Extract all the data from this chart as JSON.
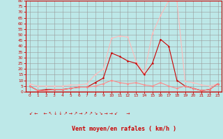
{
  "x": [
    0,
    1,
    2,
    3,
    4,
    5,
    6,
    7,
    8,
    9,
    10,
    11,
    12,
    13,
    14,
    15,
    16,
    17,
    18,
    19,
    20,
    21,
    22,
    23
  ],
  "wind_avg": [
    5,
    1,
    1,
    2,
    2,
    3,
    4,
    4,
    5,
    7,
    10,
    8,
    7,
    8,
    6,
    5,
    8,
    5,
    3,
    5,
    3,
    1,
    2,
    7
  ],
  "wind_gust": [
    7,
    5,
    5,
    5,
    5,
    6,
    6,
    7,
    15,
    20,
    47,
    49,
    48,
    27,
    16,
    51,
    67,
    80,
    80,
    9,
    8,
    6,
    5,
    7
  ],
  "wind_strong": [
    5,
    1,
    2,
    2,
    2,
    3,
    4,
    4,
    8,
    12,
    34,
    31,
    27,
    25,
    15,
    25,
    46,
    40,
    10,
    5,
    3,
    1,
    2,
    7
  ],
  "xlabel": "Vent moyen/en rafales ( km/h )",
  "ylim": [
    0,
    80
  ],
  "yticks": [
    0,
    5,
    10,
    15,
    20,
    25,
    30,
    35,
    40,
    45,
    50,
    55,
    60,
    65,
    70,
    75,
    80
  ],
  "xticks": [
    0,
    1,
    2,
    3,
    4,
    5,
    6,
    7,
    8,
    9,
    10,
    11,
    12,
    13,
    14,
    15,
    16,
    17,
    18,
    19,
    20,
    21,
    22,
    23
  ],
  "bg_color": "#bde8e8",
  "grid_color": "#999999",
  "line_avg_color": "#ff8888",
  "line_gust_color": "#ffbbbb",
  "line_strong_color": "#cc0000",
  "axis_color": "#cc0000",
  "tick_color": "#cc0000",
  "arrows": "↙ ←    ← ↖ ↓ ↓ ↗ → ↗ → ↗ ↗ ↘ ↘ → → ↙      →"
}
